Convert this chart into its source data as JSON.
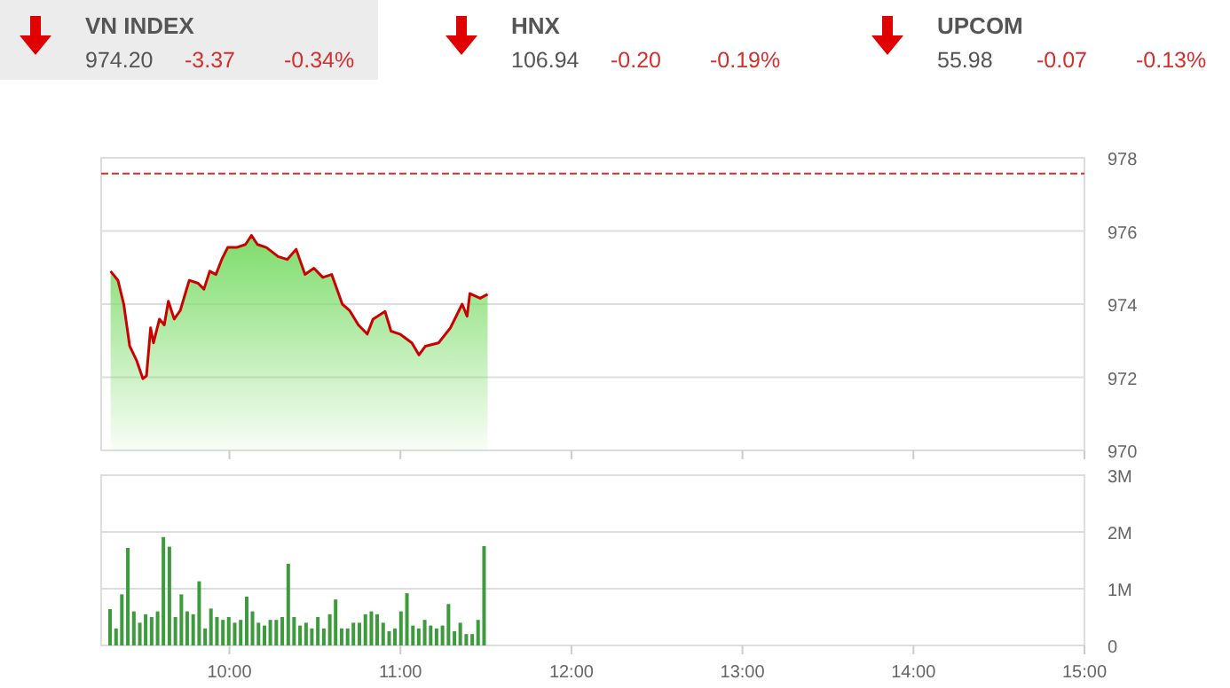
{
  "chart_data": [
    {
      "type": "other",
      "categories": [
        "VN INDEX",
        "HNX",
        "UPCOM"
      ],
      "annotations": [
        "974.20",
        "-3.37",
        "-0.34%",
        "106.94",
        "-0.20",
        "-0.19%",
        "55.98",
        "-0.07",
        "-0.13%"
      ]
    },
    {
      "type": "area",
      "xlim": [
        9.25,
        15
      ],
      "ylim": [
        970,
        978
      ],
      "yticks": [
        970,
        972,
        974,
        976,
        978
      ],
      "xticks": [
        {
          "value": 10,
          "label": null
        },
        {
          "value": 11,
          "label": null
        },
        {
          "value": 12,
          "label": null
        },
        {
          "value": 13,
          "label": null
        },
        {
          "value": 14,
          "label": null
        },
        {
          "value": 15,
          "label": null
        }
      ],
      "tick_labels": "y",
      "grid": "y",
      "ref_lines": [
        {
          "axis": "y",
          "value": 977.57,
          "color": "#d32f2f",
          "line_style": "dashed"
        }
      ],
      "series": [
        {
          "color": "#cc0000",
          "x": [
            9.305,
            9.348,
            9.382,
            9.417,
            9.458,
            9.494,
            9.515,
            9.539,
            9.556,
            9.591,
            9.619,
            9.643,
            9.677,
            9.713,
            9.765,
            9.817,
            9.851,
            9.885,
            9.921,
            9.955,
            9.99,
            10.042,
            10.094,
            10.129,
            10.164,
            10.216,
            10.285,
            10.338,
            10.39,
            10.442,
            10.494,
            10.546,
            10.598,
            10.66,
            10.702,
            10.754,
            10.806,
            10.84,
            10.91,
            10.945,
            10.997,
            11.067,
            11.108,
            11.146,
            11.223,
            11.292,
            11.361,
            11.39,
            11.406,
            11.466,
            11.51
          ],
          "values": [
            974.9,
            974.65,
            974.0,
            972.85,
            972.45,
            971.96,
            972.04,
            973.35,
            972.94,
            973.59,
            973.43,
            974.08,
            973.59,
            973.83,
            974.65,
            974.57,
            974.41,
            974.9,
            974.81,
            975.22,
            975.55,
            975.55,
            975.63,
            975.88,
            975.63,
            975.55,
            975.3,
            975.22,
            975.5,
            974.81,
            974.98,
            974.73,
            974.81,
            974.0,
            973.83,
            973.43,
            973.18,
            973.59,
            973.8,
            973.26,
            973.18,
            972.94,
            972.61,
            972.85,
            972.94,
            973.35,
            974.0,
            973.67,
            974.29,
            974.16,
            974.27
          ]
        }
      ]
    },
    {
      "type": "bar",
      "xlim": [
        9.25,
        15
      ],
      "ylim": [
        0,
        3
      ],
      "yticks": [
        0,
        {
          "value": 1,
          "label": "1M"
        },
        {
          "value": 2,
          "label": "2M"
        },
        {
          "value": 3,
          "label": "3M"
        }
      ],
      "xticks": [
        {
          "value": 10,
          "label": "10:00"
        },
        {
          "value": 11,
          "label": "11:00"
        },
        {
          "value": 12,
          "label": "12:00"
        },
        {
          "value": 13,
          "label": "13:00"
        },
        {
          "value": 14,
          "label": "14:00"
        },
        {
          "value": 15,
          "label": "15:00"
        }
      ],
      "grid": "y",
      "color": "#3d9a3d",
      "x": [
        9.302,
        9.337,
        9.371,
        9.406,
        9.441,
        9.476,
        9.51,
        9.545,
        9.58,
        9.614,
        9.649,
        9.684,
        9.719,
        9.753,
        9.788,
        9.823,
        9.858,
        9.892,
        9.927,
        9.962,
        9.996,
        10.031,
        10.066,
        10.101,
        10.135,
        10.17,
        10.205,
        10.239,
        10.274,
        10.309,
        10.344,
        10.378,
        10.413,
        10.448,
        10.482,
        10.517,
        10.552,
        10.587,
        10.621,
        10.656,
        10.691,
        10.725,
        10.76,
        10.795,
        10.83,
        10.864,
        10.899,
        10.934,
        10.968,
        11.003,
        11.038,
        11.073,
        11.107,
        11.142,
        11.177,
        11.211,
        11.246,
        11.281,
        11.316,
        11.35,
        11.385,
        11.42,
        11.454,
        11.489
      ],
      "values": [
        0.64,
        0.3,
        0.9,
        1.72,
        0.6,
        0.4,
        0.55,
        0.5,
        0.6,
        1.91,
        1.74,
        0.5,
        0.9,
        0.6,
        0.55,
        1.13,
        0.3,
        0.65,
        0.5,
        0.45,
        0.5,
        0.4,
        0.45,
        0.86,
        0.6,
        0.4,
        0.35,
        0.45,
        0.45,
        0.5,
        1.44,
        0.5,
        0.35,
        0.4,
        0.3,
        0.5,
        0.3,
        0.55,
        0.81,
        0.3,
        0.3,
        0.4,
        0.4,
        0.55,
        0.6,
        0.55,
        0.4,
        0.25,
        0.3,
        0.6,
        0.92,
        0.35,
        0.3,
        0.45,
        0.35,
        0.3,
        0.35,
        0.73,
        0.25,
        0.4,
        0.2,
        0.2,
        0.45,
        1.75
      ]
    }
  ]
}
